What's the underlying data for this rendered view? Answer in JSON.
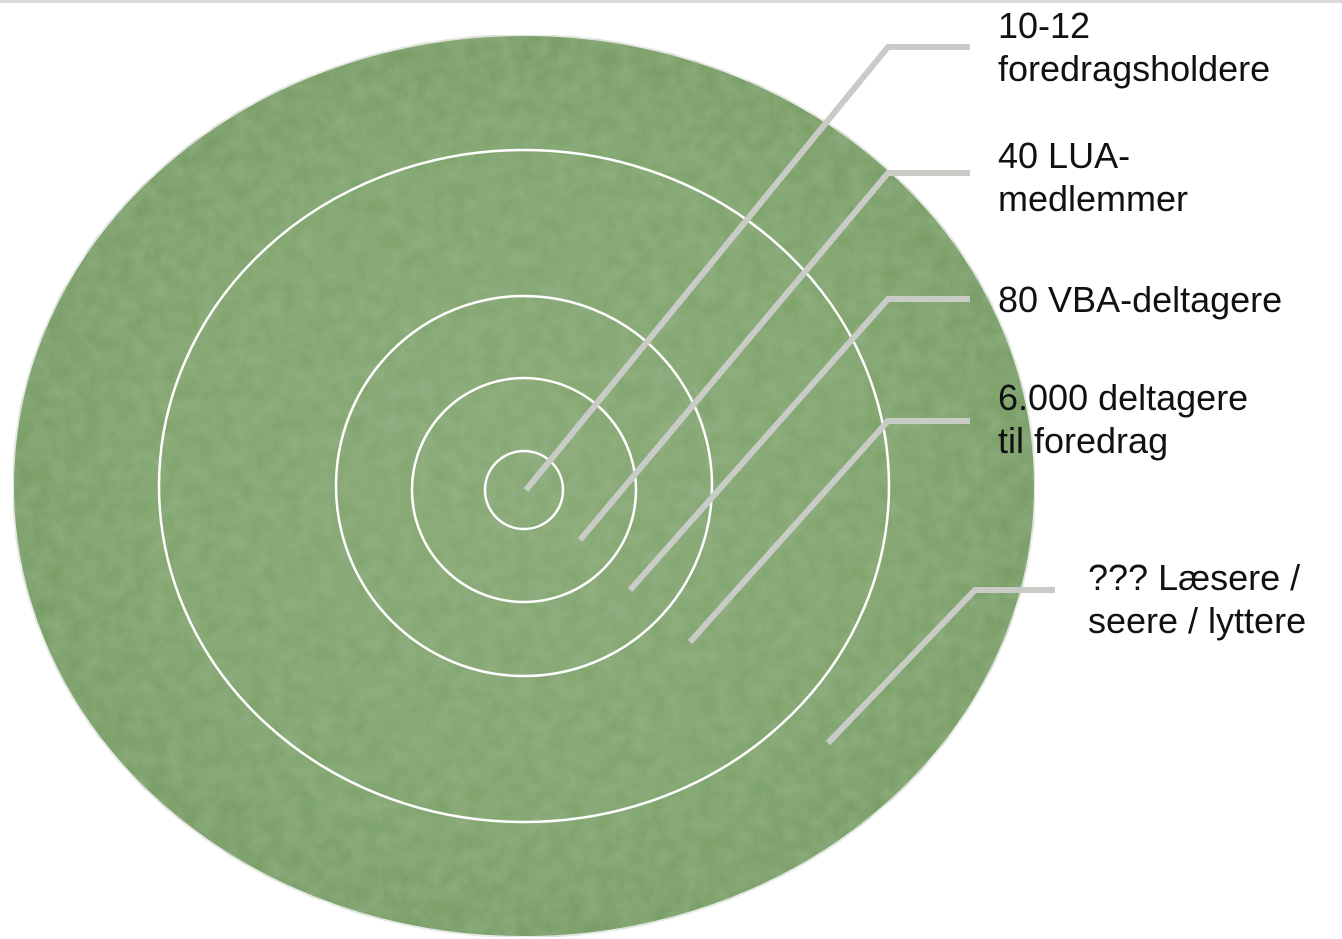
{
  "diagram": {
    "rings": [
      {
        "label": "10-12\nforedragsholdere"
      },
      {
        "label": "40 LUA-\nmedlemmer"
      },
      {
        "label": "80 VBA-deltagere"
      },
      {
        "label": "6.000 deltagere\ntil foredrag"
      },
      {
        "label": "??? Læsere /\nseere / lyttere"
      }
    ],
    "colors": {
      "fill": "#7ea36a",
      "ring_stroke": "#ffffff",
      "leader_line": "#c8cbc6",
      "text": "#111111"
    }
  }
}
